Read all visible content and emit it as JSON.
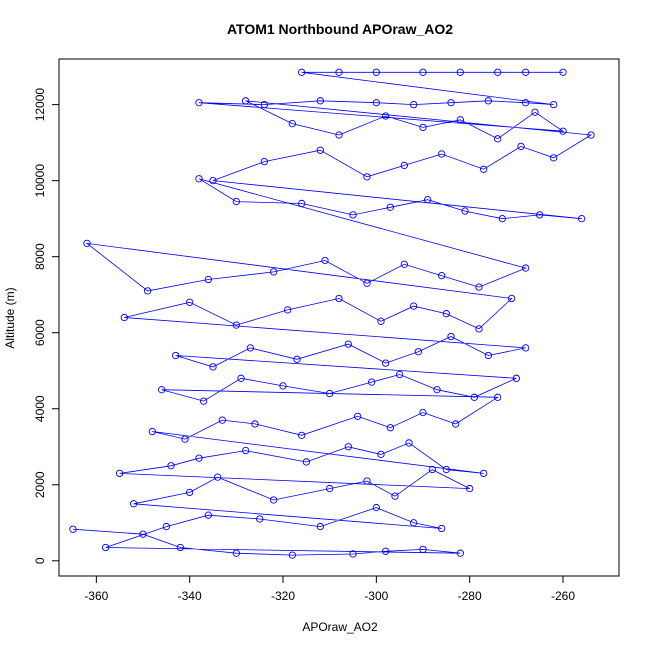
{
  "chart_data": {
    "type": "scatter",
    "title": "ATOM1 Northbound APOraw_AO2",
    "xlabel": "APOraw_AO2",
    "ylabel": "Altitude (m)",
    "xlim": [
      -368,
      -248
    ],
    "ylim": [
      -400,
      13200
    ],
    "x_ticks": [
      -360,
      -340,
      -320,
      -300,
      -280,
      -260
    ],
    "y_ticks": [
      0,
      2000,
      4000,
      6000,
      8000,
      10000,
      12000
    ],
    "grid": false,
    "legend": "none",
    "color": "#0000ff",
    "marker": "open-circle",
    "connected": true,
    "series": [
      {
        "x": [
          -365,
          -350,
          -342,
          -330,
          -318,
          -305,
          -298,
          -290,
          -282,
          -358,
          -345,
          -336,
          -325,
          -312,
          -300,
          -292,
          -286,
          -352,
          -340,
          -334,
          -322,
          -310,
          -302,
          -296,
          -288,
          -280,
          -355,
          -344,
          -338,
          -328,
          -315,
          -306,
          -299,
          -293,
          -285,
          -277,
          -348,
          -341,
          -333,
          -326,
          -316,
          -304,
          -297,
          -290,
          -283,
          -274,
          -346,
          -337,
          -329,
          -320,
          -310,
          -301,
          -295,
          -287,
          -279,
          -270,
          -343,
          -335,
          -327,
          -317,
          -306,
          -298,
          -291,
          -284,
          -276,
          -268,
          -354,
          -340,
          -330,
          -319,
          -308,
          -299,
          -292,
          -285,
          -278,
          -271,
          -362,
          -349,
          -336,
          -322,
          -311,
          -302,
          -294,
          -286,
          -278,
          -268,
          -338,
          -330,
          -316,
          -305,
          -297,
          -289,
          -281,
          -273,
          -265,
          -256,
          -335,
          -324,
          -312,
          -302,
          -294,
          -286,
          -277,
          -269,
          -262,
          -254,
          -328,
          -318,
          -308,
          -298,
          -290,
          -282,
          -274,
          -266,
          -260,
          -338,
          -324,
          -312,
          -300,
          -292,
          -284,
          -276,
          -268,
          -262,
          -316,
          -308,
          -300,
          -290,
          -282,
          -274,
          -268,
          -260
        ],
        "y": [
          830,
          700,
          350,
          200,
          150,
          180,
          250,
          300,
          200,
          350,
          900,
          1200,
          1100,
          900,
          1400,
          1000,
          850,
          1500,
          1800,
          2200,
          1600,
          1900,
          2100,
          1700,
          2400,
          1900,
          2300,
          2500,
          2700,
          2900,
          2600,
          3000,
          2800,
          3100,
          2400,
          2300,
          3400,
          3200,
          3700,
          3600,
          3300,
          3800,
          3500,
          3900,
          3600,
          4300,
          4500,
          4200,
          4800,
          4600,
          4400,
          4700,
          4900,
          4500,
          4300,
          4800,
          5400,
          5100,
          5600,
          5300,
          5700,
          5200,
          5500,
          5900,
          5400,
          5600,
          6400,
          6800,
          6200,
          6600,
          6900,
          6300,
          6700,
          6500,
          6100,
          6900,
          8350,
          7100,
          7400,
          7600,
          7900,
          7300,
          7800,
          7500,
          7200,
          7700,
          10050,
          9450,
          9400,
          9100,
          9300,
          9500,
          9200,
          9000,
          9100,
          9000,
          10000,
          10500,
          10800,
          10100,
          10400,
          10700,
          10300,
          10900,
          10600,
          11200,
          12100,
          11500,
          11200,
          11700,
          11400,
          11600,
          11100,
          11800,
          11300,
          12050,
          12000,
          12100,
          12050,
          12000,
          12050,
          12100,
          12050,
          12000,
          12850,
          12850,
          12850,
          12850,
          12850,
          12850,
          12850,
          12850
        ]
      }
    ]
  }
}
